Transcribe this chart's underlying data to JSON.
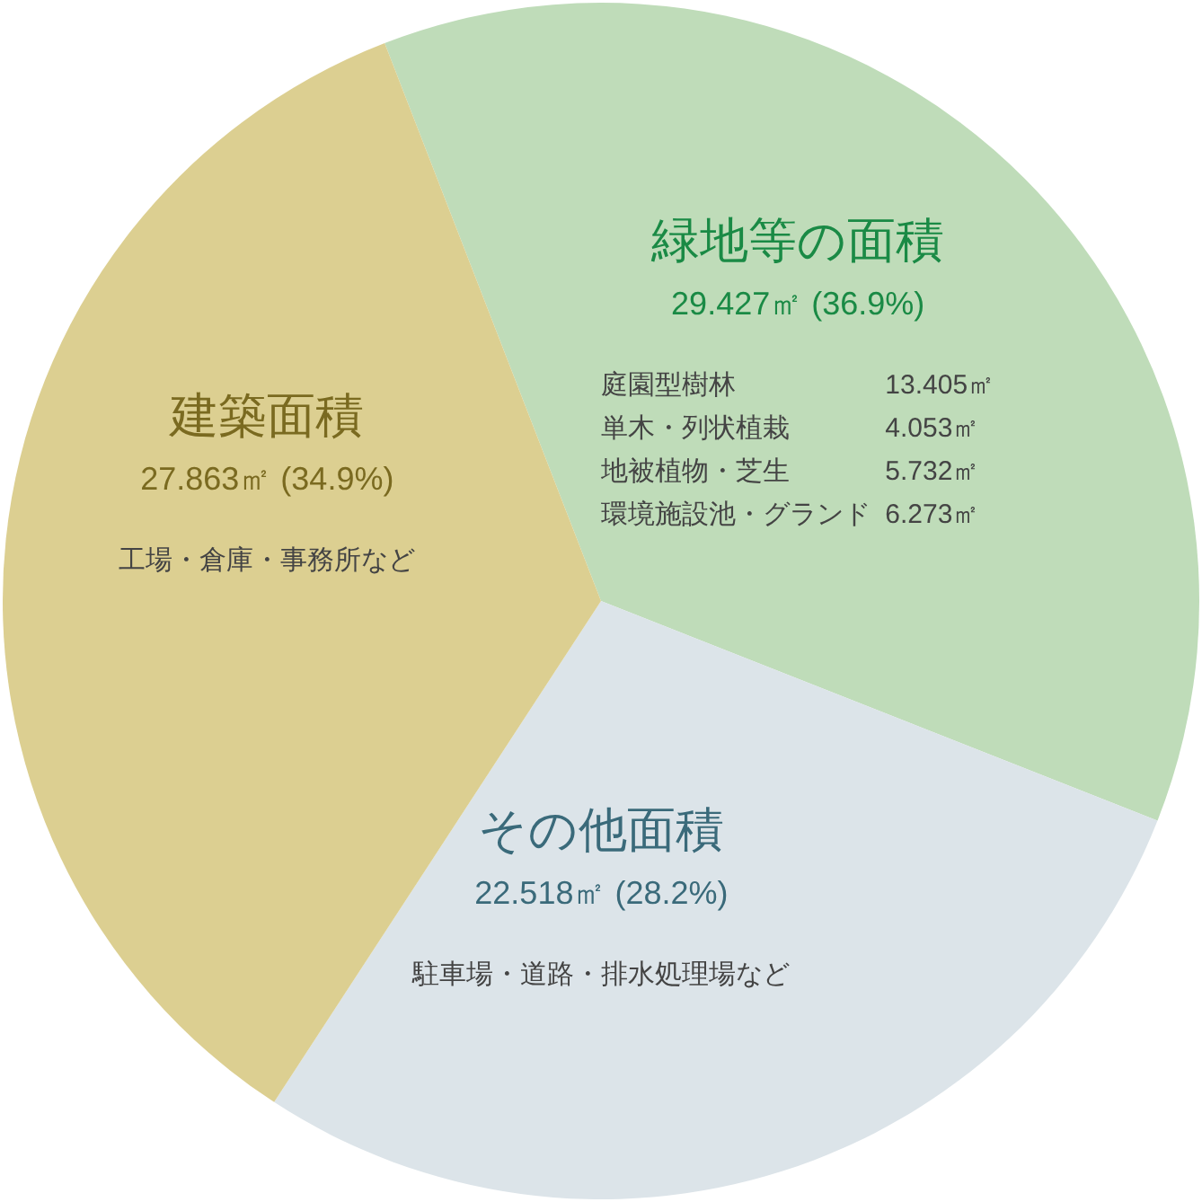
{
  "chart_data": {
    "type": "pie",
    "categories": [
      "緑地等の面積",
      "その他面積",
      "建築面積"
    ],
    "values": [
      29.427,
      22.518,
      27.863
    ],
    "colors": [
      "#bfdcb9",
      "#dce4e9",
      "#dccf91"
    ],
    "value_labels": [
      "29.427㎡ (36.9%)",
      "22.518㎡ (28.2%)",
      "27.863㎡ (34.9%)"
    ],
    "annotations": [
      "庭園型樹林",
      "13.405㎡",
      "単木・列状植栽",
      "4.053㎡",
      "地被植物・芝生",
      "5.732㎡",
      "環境施設池・グランド",
      "6.273㎡",
      "駐車場・道路・排水処理場など",
      "工場・倉庫・事務所など"
    ]
  }
}
